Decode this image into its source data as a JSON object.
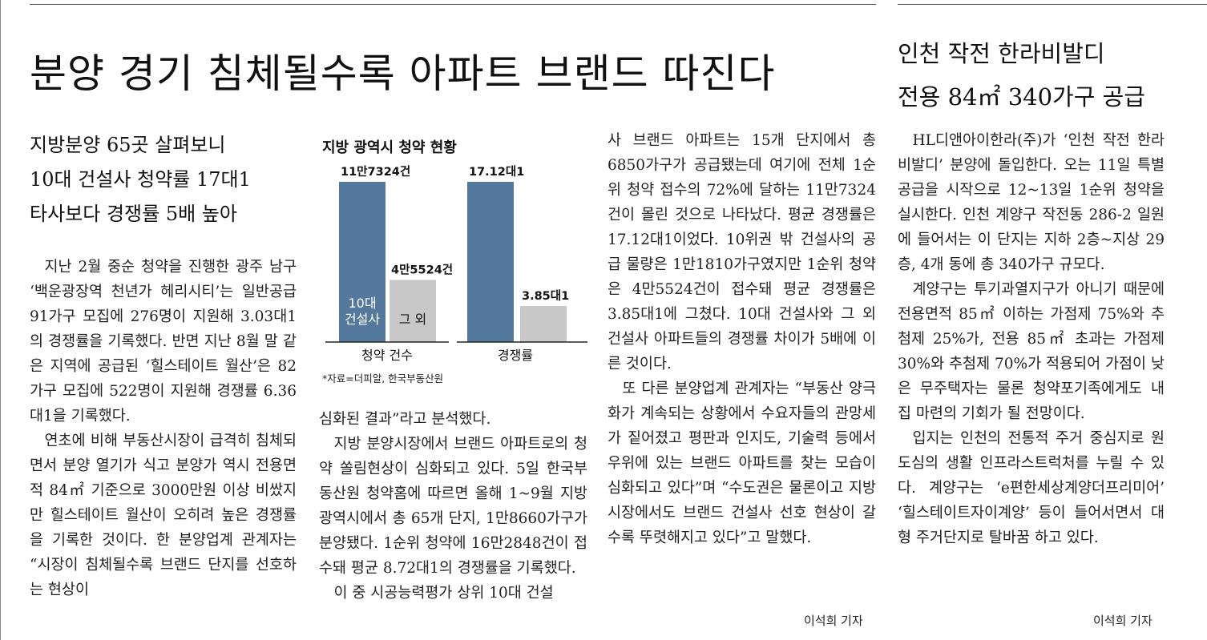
{
  "headline": "분양 경기 침체될수록 아파트 브랜드 따진다",
  "subheads": [
    "지방분양 65곳 살펴보니",
    "10대 건설사 청약률 17대1",
    "타사보다 경쟁률 5배 높아"
  ],
  "column1": [
    "지난 2월 중순 청약을 진행한 광주 남구 ‘백운광장역 천년가 헤리시티’는 일반공급 91가구 모집에 276명이 지원해 3.03대1의 경쟁률을 기록했다. 반면 지난 8월 말 같은 지역에 공급된 ‘힐스테이트 월산’은 82가구 모집에 522명이 지원해 경쟁률 6.36대1을 기록했다.",
    "연초에 비해 부동산시장이 급격히 침체되면서 분양 열기가 식고 분양가 역시 전용면적 84㎡ 기준으로 3000만원 이상 비쌌지만 힐스테이트 월산이 오히려 높은 경쟁률을 기록한 것이다. 한 분양업계 관계자는 “시장이 침체될수록 브랜드 단지를 선호하는 현상이"
  ],
  "column2": [
    "심화된 결과”라고 분석했다.",
    "지방 분양시장에서 브랜드 아파트로의 청약 쏠림현상이 심화되고 있다. 5일 한국부동산원 청약홈에 따르면 올해 1~9월 지방광역시에서 총 65개 단지, 1만8660가구가 분양됐다. 1순위 청약에 16만2848건이 접수돼 평균 8.72대1의 경쟁률을 기록했다.",
    "이 중 시공능력평가 상위 10대 건설"
  ],
  "column3": [
    "사 브랜드 아파트는 15개 단지에서 총 6850가구가 공급됐는데 여기에 전체 1순위 청약 접수의 72%에 달하는 11만7324건이 몰린 것으로 나타났다. 평균 경쟁률은 17.12대1이었다. 10위권 밖 건설사의 공급 물량은 1만1810가구였지만 1순위 청약은 4만5524건이 접수돼 평균 경쟁률은 3.85대1에 그쳤다. 10대 건설사와 그 외 건설사 아파트들의 경쟁률 차이가 5배에 이른 것이다.",
    "또 다른 분양업계 관계자는 “부동산 양극화가 계속되는 상황에서 수요자들의 관망세가 짙어졌고 평판과 인지도, 기술력 등에서 우위에 있는 브랜드 아파트를 찾는 모습이 심화되고 있다”며 “수도권은 물론이고 지방시장에서도 브랜드 건설사 선호 현상이 갈수록 뚜렷해지고 있다”고 말했다."
  ],
  "byline_main": "이석희 기자",
  "side": {
    "headline_line1": "인천 작전 한라비발디",
    "headline_line2": "전용 84㎡ 340가구 공급",
    "paragraphs": [
      "HL디앤아이한라(주)가 ‘인천 작전 한라비발디’ 분양에 돌입한다. 오는 11일 특별공급을 시작으로 12~13일 1순위 청약을 실시한다. 인천 계양구 작전동 286-2 일원에 들어서는 이 단지는 지하 2층~지상 29층, 4개 동에 총 340가구 규모다.",
      "계양구는 투기과열지구가 아니기 때문에 전용면적 85㎡ 이하는 가점제 75%와 추첨제 25%가, 전용 85㎡ 초과는 가점제 30%와 추첨제 70%가 적용되어 가점이 낮은 무주택자는 물론 청약포기족에게도 내 집 마련의 기회가 될 전망이다.",
      "입지는 인천의 전통적 주거 중심지로 원도심의 생활 인프라스트럭처를 누릴 수 있다. 계양구는 ‘e편한세상계양더프리미어’ ‘힐스테이트자이계양’ 등이 들어서면서 대형 주거단지로 탈바꿈 하고 있다."
    ],
    "byline": "이석희 기자"
  },
  "chart_data": {
    "type": "bar",
    "title": "지방 광역시 청약 현황",
    "source": "*자료=더피알, 한국부동산원",
    "series_names": [
      "10대 건설사",
      "그 외"
    ],
    "colors": {
      "top10": "#55799c",
      "others": "#c8c8c8"
    },
    "groups": [
      {
        "label": "청약 건수",
        "values": [
          117324,
          45524
        ],
        "value_labels": [
          "11만7324건",
          "4만5524건"
        ]
      },
      {
        "label": "경쟁률",
        "values": [
          17.12,
          3.85
        ],
        "value_labels": [
          "17.12대1",
          "3.85대1"
        ]
      }
    ],
    "inbar_labels": {
      "top10_line1": "10대",
      "top10_line2": "건설사",
      "others": "그 외"
    }
  }
}
